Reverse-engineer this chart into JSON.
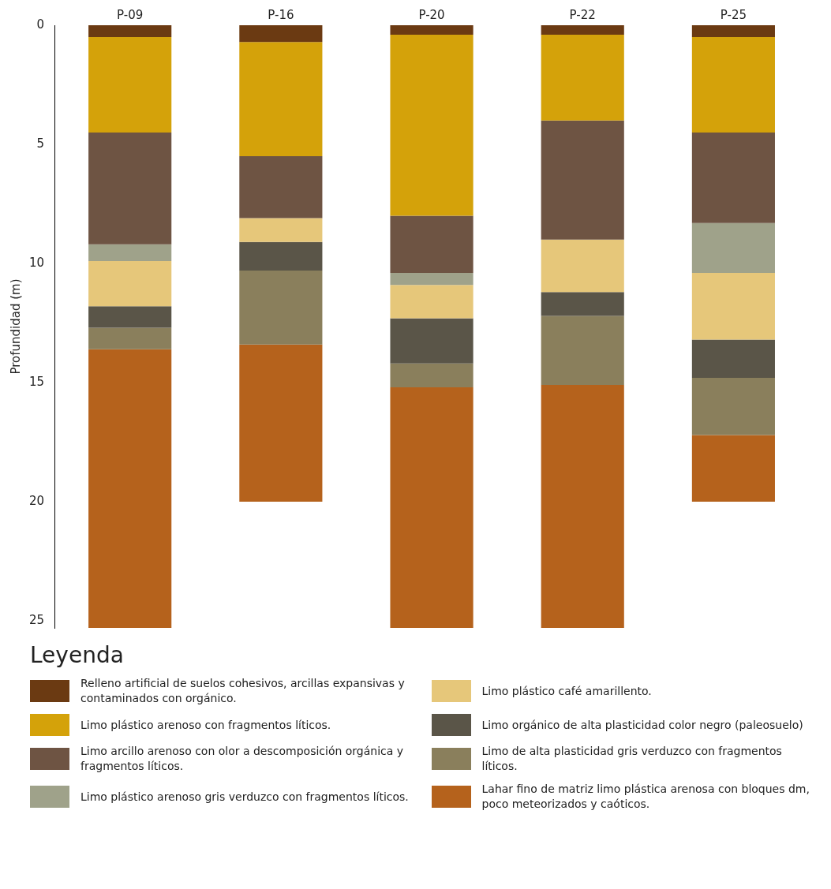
{
  "chart_data": {
    "type": "bar",
    "stacked": true,
    "ylabel": "Profundidad (m)",
    "legend_title": "Leyenda",
    "legend": "bottom",
    "grid": false,
    "categories": [
      "P-09",
      "P-16",
      "P-20",
      "P-22",
      "P-25"
    ],
    "ylim": [
      25.3,
      0
    ],
    "yticks": [
      0,
      5,
      10,
      15,
      20,
      25
    ],
    "series": [
      {
        "name": "Relleno artificial de suelos cohesivos, arcillas expansivas y contaminados con orgánico.",
        "color": "#6b3a12",
        "values": [
          0.5,
          0.7,
          0.4,
          0.4,
          0.5
        ]
      },
      {
        "name": "Limo plástico arenoso con fragmentos líticos.",
        "color": "#d4a20a",
        "values": [
          4.0,
          4.8,
          7.6,
          3.6,
          4.0
        ]
      },
      {
        "name": "Limo arcillo arenoso con olor a descomposición orgánica y fragmentos líticos.",
        "color": "#6e5443",
        "values": [
          4.7,
          2.6,
          2.4,
          5.0,
          3.8
        ]
      },
      {
        "name": "Limo plástico arenoso gris verduzco con fragmentos líticos.",
        "color": "#9fa28a",
        "values": [
          0.7,
          null,
          0.5,
          null,
          2.1
        ]
      },
      {
        "name": "Limo plástico café amarillento.",
        "color": "#e6c77a",
        "values": [
          1.9,
          1.0,
          1.4,
          2.2,
          2.8
        ]
      },
      {
        "name": "Limo orgánico de alta plasticidad color negro (paleosuelo)",
        "color": "#5a5548",
        "values": [
          0.9,
          1.2,
          1.9,
          1.0,
          1.6
        ]
      },
      {
        "name": "Limo de alta plasticidad gris verduzco con fragmentos líticos.",
        "color": "#8a7f5c",
        "values": [
          0.9,
          3.1,
          1.0,
          2.9,
          2.4
        ]
      },
      {
        "name": "Lahar fino de matriz limo plástica arenosa con bloques dm, poco meteorizados y caóticos.",
        "color": "#b5621c",
        "values": [
          11.7,
          6.6,
          10.1,
          10.2,
          2.8
        ]
      }
    ]
  }
}
